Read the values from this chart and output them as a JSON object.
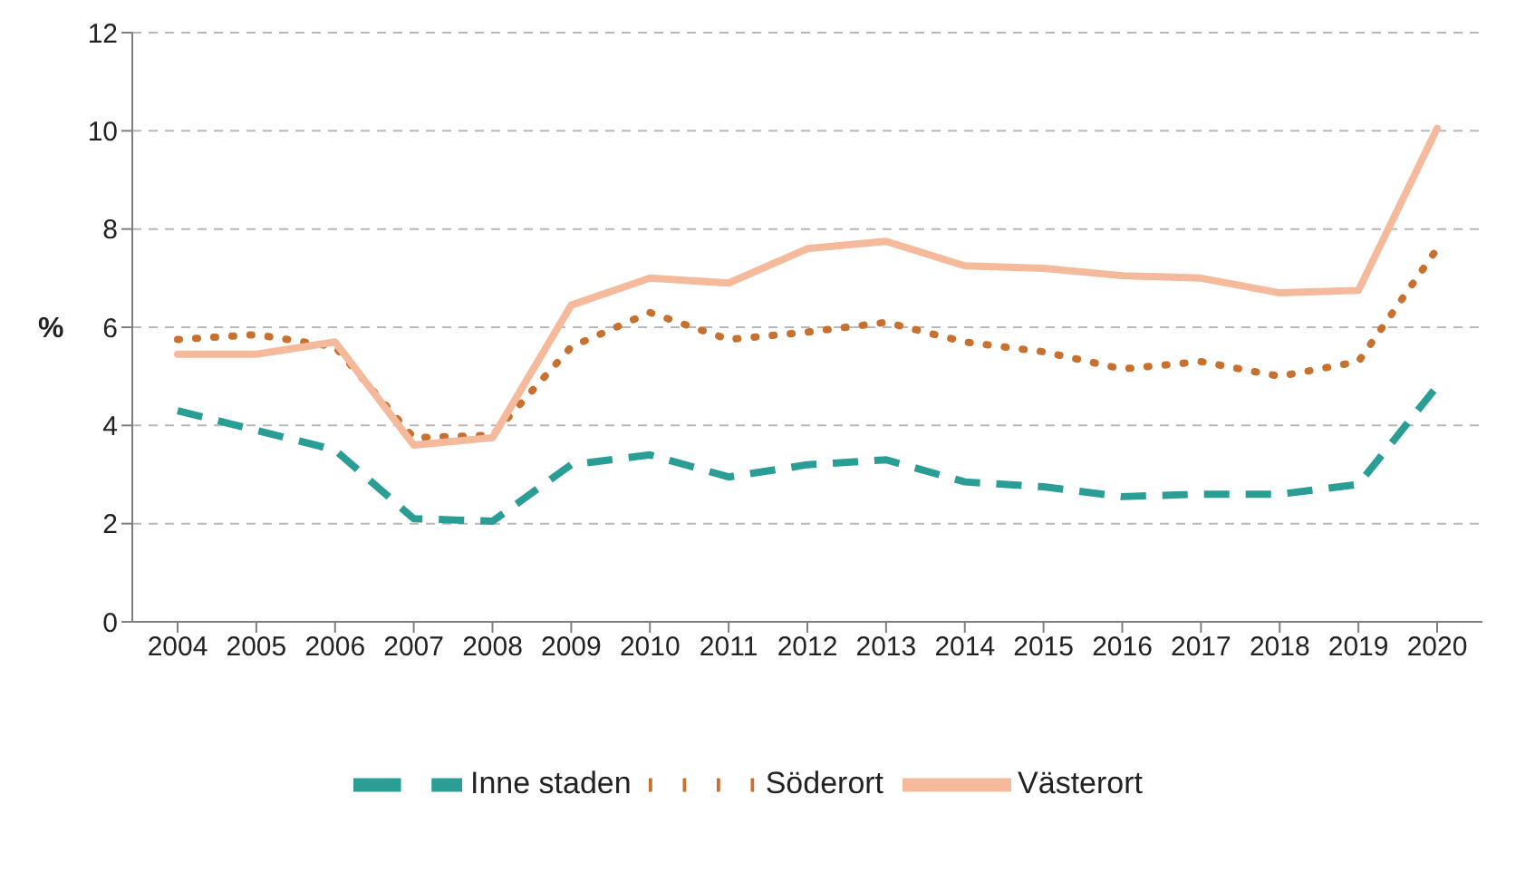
{
  "chart_data": {
    "type": "line",
    "ylabel": "%",
    "categories": [
      "2004",
      "2005",
      "2006",
      "2007",
      "2008",
      "2009",
      "2010",
      "2011",
      "2012",
      "2013",
      "2014",
      "2015",
      "2016",
      "2017",
      "2018",
      "2019",
      "2020"
    ],
    "series": [
      {
        "name": "Inne staden",
        "color": "#2a9d95",
        "line_style": "dashed",
        "values": [
          4.3,
          3.9,
          3.5,
          2.1,
          2.05,
          3.2,
          3.4,
          2.95,
          3.2,
          3.3,
          2.85,
          2.75,
          2.55,
          2.6,
          2.6,
          2.8,
          4.8
        ]
      },
      {
        "name": "Söderort",
        "color": "#c8702e",
        "line_style": "dotted",
        "values": [
          5.75,
          5.85,
          5.6,
          3.75,
          3.8,
          5.6,
          6.3,
          5.75,
          5.9,
          6.1,
          5.7,
          5.5,
          5.15,
          5.3,
          5.0,
          5.3,
          7.6
        ]
      },
      {
        "name": "Västerort",
        "color": "#f5b99b",
        "line_style": "solid",
        "values": [
          5.45,
          5.45,
          5.7,
          3.6,
          3.75,
          6.45,
          7.0,
          6.9,
          7.6,
          7.75,
          7.25,
          7.2,
          7.05,
          7.0,
          6.7,
          6.75,
          10.05
        ]
      }
    ],
    "ylim": [
      0,
      12
    ],
    "yticks": [
      0,
      2,
      4,
      6,
      8,
      10,
      12
    ],
    "grid": "y",
    "legend": "bottom",
    "marker": "none"
  }
}
